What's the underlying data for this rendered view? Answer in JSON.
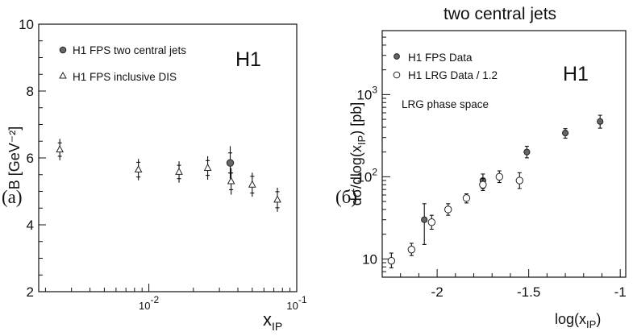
{
  "chart_data": [
    {
      "type": "scatter",
      "panel_label": "(a)",
      "experiment_label": "H1",
      "ylabel": "B [GeV⁻²]",
      "xlabel": "x",
      "xlabel_sub": "IP",
      "xscale": "log",
      "xlim": [
        0.0018,
        0.1
      ],
      "ylim": [
        2,
        10
      ],
      "xticks": [
        {
          "value": 0.01,
          "base": "10",
          "exp": "-2"
        },
        {
          "value": 0.1,
          "base": "10",
          "exp": "-1"
        }
      ],
      "yticks": [
        "2",
        "4",
        "6",
        "8",
        "10"
      ],
      "legend_position": "top-left",
      "series": [
        {
          "name": "H1 FPS two central jets",
          "marker": "filled-circle",
          "points": [
            {
              "x": 0.0355,
              "y": 5.85,
              "stat": 0.3,
              "tot": 0.5
            }
          ]
        },
        {
          "name": "H1 FPS inclusive DIS",
          "marker": "open-triangle",
          "points": [
            {
              "x": 0.0025,
              "y": 6.25,
              "stat": 0.2,
              "tot": 0.32
            },
            {
              "x": 0.0085,
              "y": 5.65,
              "stat": 0.22,
              "tot": 0.32
            },
            {
              "x": 0.016,
              "y": 5.58,
              "stat": 0.2,
              "tot": 0.32
            },
            {
              "x": 0.025,
              "y": 5.7,
              "stat": 0.22,
              "tot": 0.35
            },
            {
              "x": 0.036,
              "y": 5.3,
              "stat": 0.25,
              "tot": 0.4
            },
            {
              "x": 0.05,
              "y": 5.2,
              "stat": 0.25,
              "tot": 0.36
            },
            {
              "x": 0.074,
              "y": 4.75,
              "stat": 0.24,
              "tot": 0.36
            }
          ]
        }
      ]
    },
    {
      "type": "scatter",
      "panel_label": "(б)",
      "title": "two central jets",
      "experiment_label": "H1",
      "annotation": "LRG phase space",
      "ylabel": "dσ/dlog(x",
      "ylabel_sub": "IP",
      "ylabel_tail": ") [pb]",
      "xlabel": "log(x",
      "xlabel_sub": "IP",
      "xlabel_tail": ")",
      "yscale": "log",
      "xlim": [
        -2.3,
        -0.97
      ],
      "ylim": [
        6,
        6000
      ],
      "xticks": [
        {
          "value": -2,
          "label": "-2"
        },
        {
          "value": -1.5,
          "label": "-1.5"
        },
        {
          "value": -1,
          "label": "-1"
        }
      ],
      "yticks": [
        {
          "value": 10,
          "label": "10"
        },
        {
          "value": 100,
          "base": "10",
          "exp": "2"
        },
        {
          "value": 1000,
          "base": "10",
          "exp": "3"
        }
      ],
      "legend_position": "top-left",
      "series": [
        {
          "name": "H1 FPS Data",
          "marker": "filled-circle",
          "points": [
            {
              "x": -2.07,
              "y": 30,
              "lo": 15,
              "hi": 47
            },
            {
              "x": -1.75,
              "y": 90,
              "lo": 72,
              "hi": 108
            },
            {
              "x": -1.51,
              "y": 200,
              "lo": 170,
              "hi": 235
            },
            {
              "x": -1.3,
              "y": 340,
              "lo": 295,
              "hi": 385
            },
            {
              "x": -1.11,
              "y": 470,
              "lo": 390,
              "hi": 560
            }
          ]
        },
        {
          "name": "H1 LRG Data / 1.2",
          "marker": "open-circle",
          "points": [
            {
              "x": -2.25,
              "y": 9.5,
              "lo": 7.8,
              "hi": 11.8
            },
            {
              "x": -2.14,
              "y": 13,
              "lo": 11,
              "hi": 15.5
            },
            {
              "x": -2.03,
              "y": 28,
              "lo": 23,
              "hi": 34
            },
            {
              "x": -1.94,
              "y": 40,
              "lo": 34,
              "hi": 47
            },
            {
              "x": -1.84,
              "y": 55,
              "lo": 48,
              "hi": 62
            },
            {
              "x": -1.75,
              "y": 80,
              "lo": 68,
              "hi": 95
            },
            {
              "x": -1.66,
              "y": 100,
              "lo": 85,
              "hi": 118
            },
            {
              "x": -1.55,
              "y": 90,
              "lo": 72,
              "hi": 112
            }
          ]
        }
      ]
    }
  ]
}
